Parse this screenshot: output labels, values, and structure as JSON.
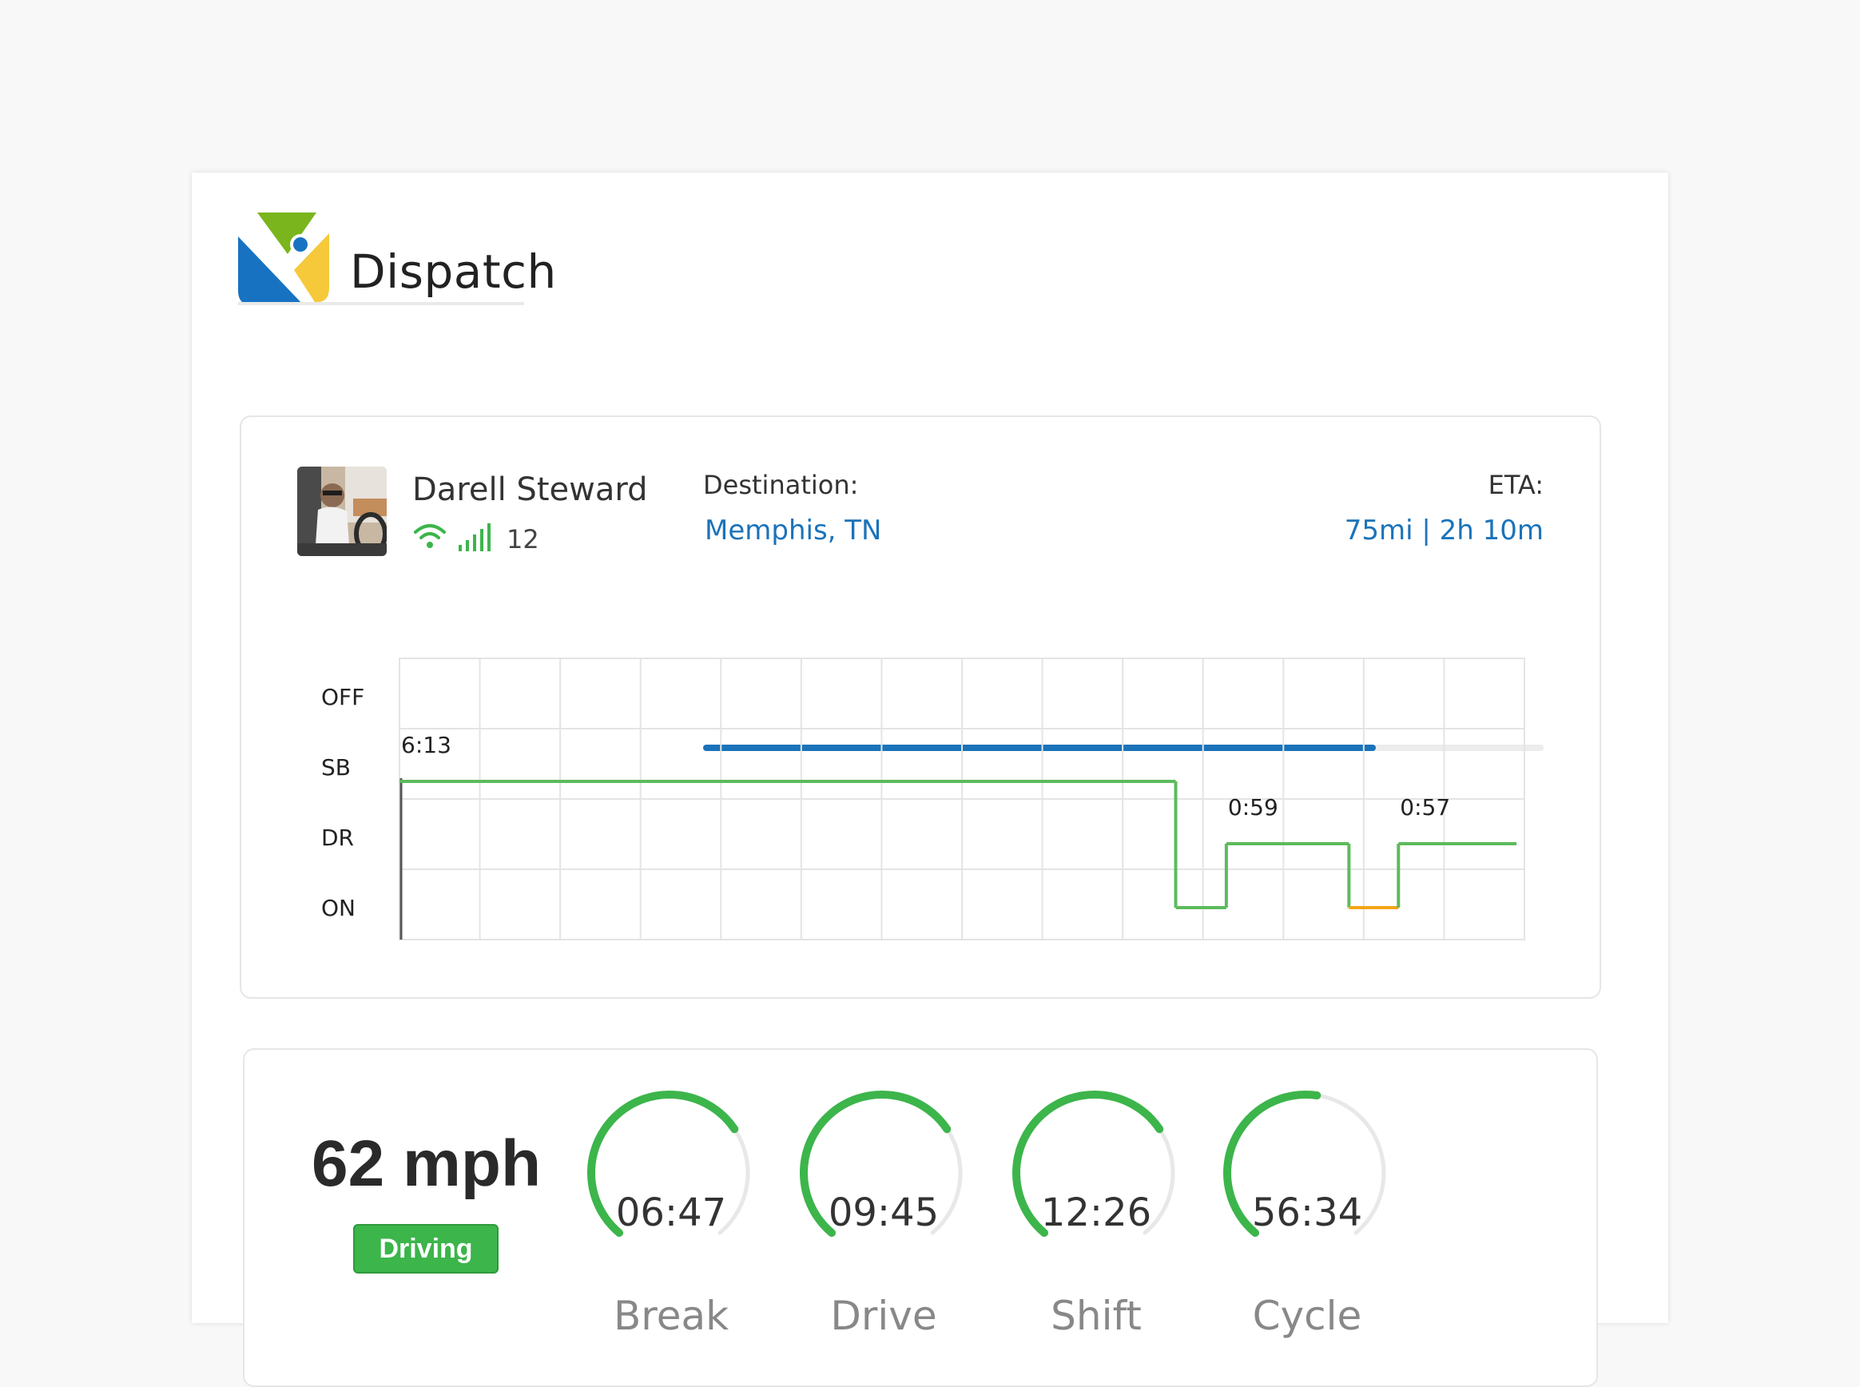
{
  "app": {
    "title": "Dispatch"
  },
  "colors": {
    "accent_blue": "#1b73b9",
    "status_green": "#3cb54b",
    "line_green": "#5cbb5c",
    "line_orange": "#f2a516",
    "logo_green": "#7ab51d",
    "logo_blue": "#1773c2",
    "logo_yellow": "#f5c93a"
  },
  "driver": {
    "name": "Darell Steward",
    "signal_count": "12",
    "icons": [
      "wifi-icon",
      "signal-bars-icon"
    ]
  },
  "trip": {
    "destination_label": "Destination:",
    "destination": "Memphis, TN",
    "eta_label": "ETA:",
    "eta": "75mi | 2h 10m",
    "progress_percent": 80
  },
  "chart_data": {
    "type": "line",
    "title": "",
    "xlabel": "",
    "ylabel": "",
    "y_categories": [
      "OFF",
      "SB",
      "DR",
      "ON"
    ],
    "grid": true,
    "segments": [
      {
        "from": 0.0,
        "to": 0.69,
        "status": "SB",
        "color": "green"
      },
      {
        "from": 0.69,
        "to": 0.735,
        "status": "ON",
        "color": "green"
      },
      {
        "from": 0.735,
        "to": 0.844,
        "status": "DR",
        "color": "green"
      },
      {
        "from": 0.844,
        "to": 0.888,
        "status": "ON",
        "color": "orange"
      },
      {
        "from": 0.888,
        "to": 0.993,
        "status": "DR",
        "color": "green"
      }
    ],
    "annotations": [
      {
        "text": "6:13",
        "at": 0.0,
        "status": "SB"
      },
      {
        "text": "0:59",
        "at": 0.735,
        "status": "DR"
      },
      {
        "text": "0:57",
        "at": 0.888,
        "status": "DR"
      }
    ]
  },
  "stats": {
    "speed": "62 mph",
    "status": "Driving",
    "gauges": [
      {
        "time": "06:47",
        "label": "Break",
        "fraction": 0.7
      },
      {
        "time": "09:45",
        "label": "Drive",
        "fraction": 0.7
      },
      {
        "time": "12:26",
        "label": "Shift",
        "fraction": 0.7
      },
      {
        "time": "56:34",
        "label": "Cycle",
        "fraction": 0.53
      }
    ]
  }
}
